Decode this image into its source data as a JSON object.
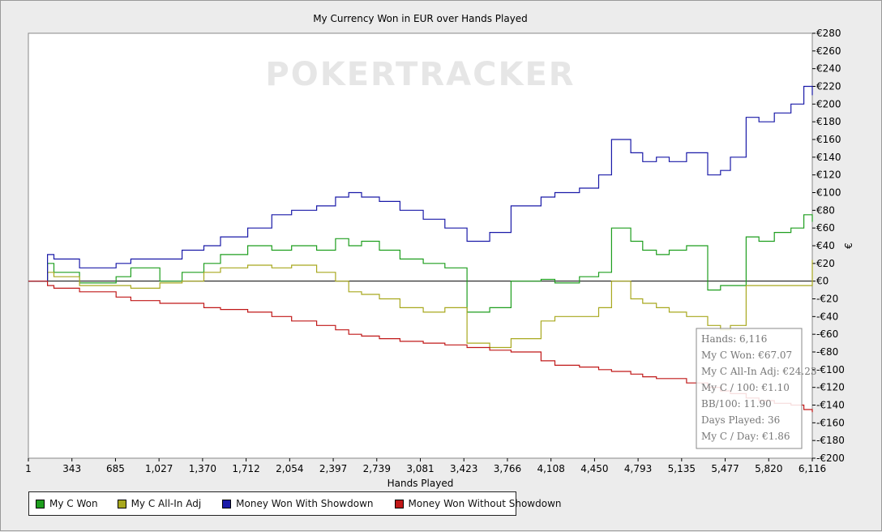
{
  "chart_data": {
    "type": "line",
    "title": "My Currency Won in EUR over Hands Played",
    "xlabel": "Hands Played",
    "ylabel": "€",
    "watermark": "POKERTRACKER",
    "xlim": [
      1,
      6116
    ],
    "ylim": [
      -200,
      280
    ],
    "x_ticks": [
      "1",
      "343",
      "685",
      "1,027",
      "1,370",
      "1,712",
      "2,054",
      "2,397",
      "2,739",
      "3,081",
      "3,423",
      "3,766",
      "4,108",
      "4,450",
      "4,793",
      "5,135",
      "5,477",
      "5,820",
      "6,116"
    ],
    "y_ticks": [
      280,
      260,
      240,
      220,
      200,
      180,
      160,
      140,
      120,
      100,
      80,
      60,
      40,
      20,
      0,
      -20,
      -40,
      -60,
      -80,
      -100,
      -120,
      -140,
      -160,
      -180,
      -200
    ],
    "y_tick_prefix": "€",
    "legend_position": "bottom",
    "series": [
      {
        "name": "My C Won",
        "color": "#1e9e1e",
        "x": [
          1,
          150,
          200,
          400,
          685,
          800,
          1027,
          1200,
          1370,
          1500,
          1712,
          1900,
          2054,
          2250,
          2397,
          2500,
          2600,
          2739,
          2900,
          3081,
          3250,
          3423,
          3600,
          3766,
          4000,
          4108,
          4300,
          4450,
          4550,
          4700,
          4793,
          4900,
          5000,
          5135,
          5300,
          5400,
          5477,
          5600,
          5700,
          5820,
          5950,
          6050,
          6116
        ],
        "y": [
          0,
          20,
          10,
          -2,
          5,
          15,
          0,
          10,
          20,
          30,
          40,
          35,
          40,
          35,
          48,
          40,
          45,
          35,
          25,
          20,
          15,
          -35,
          -30,
          0,
          2,
          -2,
          5,
          10,
          60,
          45,
          35,
          30,
          35,
          40,
          -10,
          -5,
          -5,
          50,
          45,
          55,
          60,
          75,
          67
        ]
      },
      {
        "name": "My C All-In Adj",
        "color": "#a8a81e",
        "x": [
          1,
          150,
          200,
          400,
          685,
          800,
          1027,
          1200,
          1370,
          1500,
          1712,
          1900,
          2054,
          2250,
          2397,
          2500,
          2600,
          2739,
          2900,
          3081,
          3250,
          3423,
          3600,
          3766,
          4000,
          4108,
          4300,
          4450,
          4550,
          4700,
          4793,
          4900,
          5000,
          5135,
          5300,
          5400,
          5477,
          5600,
          5700,
          5820,
          5950,
          6050,
          6116
        ],
        "y": [
          0,
          10,
          5,
          -5,
          -5,
          -8,
          -2,
          0,
          10,
          15,
          18,
          15,
          18,
          10,
          0,
          -12,
          -15,
          -20,
          -30,
          -35,
          -30,
          -70,
          -75,
          -65,
          -45,
          -40,
          -40,
          -30,
          0,
          -20,
          -25,
          -30,
          -35,
          -40,
          -50,
          -55,
          -50,
          -5,
          -5,
          -5,
          -5,
          -5,
          24
        ]
      },
      {
        "name": "Money Won With Showdown",
        "color": "#1a1aa8",
        "x": [
          1,
          150,
          200,
          400,
          685,
          800,
          1027,
          1200,
          1370,
          1500,
          1712,
          1900,
          2054,
          2250,
          2397,
          2500,
          2600,
          2739,
          2900,
          3081,
          3250,
          3423,
          3600,
          3766,
          4000,
          4108,
          4300,
          4450,
          4550,
          4700,
          4793,
          4900,
          5000,
          5135,
          5300,
          5400,
          5477,
          5600,
          5700,
          5820,
          5950,
          6050,
          6116
        ],
        "y": [
          0,
          30,
          25,
          15,
          20,
          25,
          25,
          35,
          40,
          50,
          60,
          75,
          80,
          85,
          95,
          100,
          95,
          90,
          80,
          70,
          60,
          45,
          55,
          85,
          95,
          100,
          105,
          120,
          160,
          145,
          135,
          140,
          135,
          145,
          120,
          125,
          140,
          185,
          180,
          190,
          200,
          220,
          210
        ]
      },
      {
        "name": "Money Won Without Showdown",
        "color": "#c01818",
        "x": [
          1,
          150,
          200,
          400,
          685,
          800,
          1027,
          1200,
          1370,
          1500,
          1712,
          1900,
          2054,
          2250,
          2397,
          2500,
          2600,
          2739,
          2900,
          3081,
          3250,
          3423,
          3600,
          3766,
          4000,
          4108,
          4300,
          4450,
          4550,
          4700,
          4793,
          4900,
          5000,
          5135,
          5300,
          5400,
          5477,
          5600,
          5700,
          5820,
          5950,
          6050,
          6116
        ],
        "y": [
          0,
          -5,
          -8,
          -12,
          -18,
          -22,
          -25,
          -25,
          -30,
          -32,
          -35,
          -40,
          -45,
          -50,
          -55,
          -60,
          -62,
          -65,
          -68,
          -70,
          -72,
          -75,
          -78,
          -80,
          -90,
          -95,
          -97,
          -100,
          -102,
          -105,
          -108,
          -110,
          -110,
          -115,
          -120,
          -124,
          -127,
          -132,
          -135,
          -138,
          -140,
          -145,
          -148
        ]
      }
    ],
    "tooltip": [
      {
        "label": "Hands:",
        "value": "6,116"
      },
      {
        "label": "My C Won:",
        "value": "€67.07"
      },
      {
        "label": "My C All-In Adj:",
        "value": "€24.23"
      },
      {
        "label": "My C / 100:",
        "value": "€1.10"
      },
      {
        "label": "BB/100:",
        "value": "11.90"
      },
      {
        "label": "Days Played:",
        "value": "36"
      },
      {
        "label": "My C / Day:",
        "value": "€1.86"
      }
    ]
  }
}
